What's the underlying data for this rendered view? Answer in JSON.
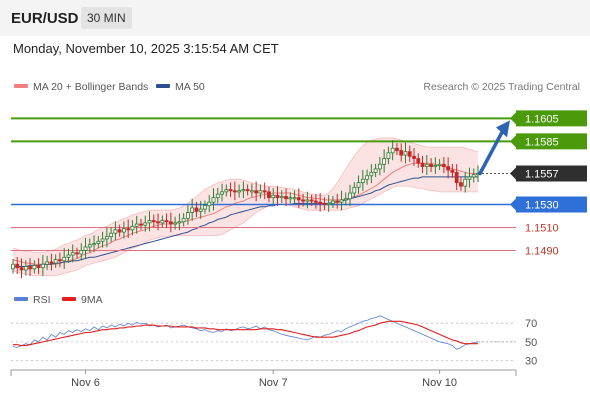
{
  "header": {
    "pair": "EUR/USD",
    "timeframe": "30 MIN",
    "datetime": "Monday, November 10, 2025 3:15:54 AM CET"
  },
  "legend": [
    {
      "label": "MA 20 + Bollinger Bands",
      "color": "#f08080"
    },
    {
      "label": "MA 50",
      "color": "#2b4f8f"
    }
  ],
  "credit": "Research © 2025 Trading Central",
  "rsi_legend": [
    {
      "label": "RSI",
      "color": "#5b7fd6"
    },
    {
      "label": "9MA",
      "color": "#e02020"
    }
  ],
  "colors": {
    "up": "#2e7d32",
    "down": "#c62828",
    "target": "#4a9a0c",
    "pivot": "#2e6fd8",
    "support": "#e07080",
    "arrow": "#2b64b0"
  },
  "chart_data": [
    {
      "type": "candlestick",
      "title": "EUR/USD",
      "ylim": [
        1.1466,
        1.1621
      ],
      "x_ticks": [
        "Nov 6",
        "Nov 7",
        "Nov 10"
      ],
      "levels": [
        {
          "label": "1.1605",
          "value": 1.1605,
          "kind": "target"
        },
        {
          "label": "1.1585",
          "value": 1.1585,
          "kind": "target"
        },
        {
          "label": "1.1557",
          "value": 1.1557,
          "kind": "current"
        },
        {
          "label": "1.1530",
          "value": 1.153,
          "kind": "pivot"
        },
        {
          "label": "1.1510",
          "value": 1.151,
          "kind": "support"
        },
        {
          "label": "1.1490",
          "value": 1.149,
          "kind": "support"
        }
      ],
      "close": [
        1.1478,
        1.1475,
        1.1473,
        1.1476,
        1.1474,
        1.1477,
        1.1475,
        1.1478,
        1.148,
        1.1479,
        1.1482,
        1.1481,
        1.1484,
        1.1486,
        1.1488,
        1.1487,
        1.149,
        1.1493,
        1.1495,
        1.1496,
        1.1498,
        1.15,
        1.1502,
        1.1505,
        1.1508,
        1.1506,
        1.1509,
        1.1508,
        1.1511,
        1.1513,
        1.1512,
        1.1514,
        1.1516,
        1.1515,
        1.1514,
        1.1516,
        1.1515,
        1.1513,
        1.1514,
        1.1515,
        1.1518,
        1.1523,
        1.1527,
        1.1524,
        1.1526,
        1.1529,
        1.1532,
        1.1536,
        1.1539,
        1.1541,
        1.1543,
        1.1542,
        1.1541,
        1.1542,
        1.1543,
        1.1542,
        1.1542,
        1.154,
        1.1542,
        1.1541,
        1.1536,
        1.1538,
        1.1536,
        1.1537,
        1.1535,
        1.1536,
        1.1536,
        1.1534,
        1.1533,
        1.1534,
        1.1533,
        1.1532,
        1.1531,
        1.153,
        1.1531,
        1.1533,
        1.1532,
        1.1534,
        1.1535,
        1.154,
        1.1545,
        1.1549,
        1.1552,
        1.1555,
        1.1558,
        1.1561,
        1.1565,
        1.157,
        1.1575,
        1.1579,
        1.1577,
        1.1573,
        1.1576,
        1.1572,
        1.157,
        1.1566,
        1.1563,
        1.1565,
        1.1563,
        1.1564,
        1.1565,
        1.1563,
        1.156,
        1.1558,
        1.1549,
        1.1546,
        1.1552,
        1.1554,
        1.1556,
        1.1557
      ],
      "ma20": [
        1.1482,
        1.1481,
        1.148,
        1.1479,
        1.1479,
        1.1478,
        1.1478,
        1.1478,
        1.1478,
        1.1478,
        1.1478,
        1.1479,
        1.148,
        1.1481,
        1.1482,
        1.1483,
        1.1485,
        1.1487,
        1.1488,
        1.149,
        1.1492,
        1.1494,
        1.1495,
        1.1497,
        1.1499,
        1.15,
        1.1502,
        1.1503,
        1.1505,
        1.1506,
        1.1507,
        1.1508,
        1.151,
        1.1511,
        1.1512,
        1.1513,
        1.1513,
        1.1513,
        1.1514,
        1.1514,
        1.1515,
        1.1516,
        1.1517,
        1.1518,
        1.1519,
        1.152,
        1.1521,
        1.1522,
        1.1524,
        1.1526,
        1.1528,
        1.1529,
        1.1531,
        1.1532,
        1.1533,
        1.1535,
        1.1536,
        1.1537,
        1.1538,
        1.1539,
        1.1539,
        1.154,
        1.154,
        1.154,
        1.154,
        1.154,
        1.1539,
        1.1538,
        1.1537,
        1.1536,
        1.1536,
        1.1535,
        1.1535,
        1.1534,
        1.1534,
        1.1534,
        1.1534,
        1.1534,
        1.1535,
        1.1536,
        1.1537,
        1.1538,
        1.154,
        1.1542,
        1.1544,
        1.1546,
        1.1549,
        1.1552,
        1.1555,
        1.1558,
        1.156,
        1.1562,
        1.1564,
        1.1565,
        1.1566,
        1.1566,
        1.1566,
        1.1566,
        1.1566,
        1.1565,
        1.1564,
        1.1563,
        1.1562,
        1.1561,
        1.156,
        1.1559,
        1.1558,
        1.1557,
        1.1557,
        1.1557
      ],
      "bb_upper": [
        1.1492,
        1.1491,
        1.149,
        1.1489,
        1.1489,
        1.1488,
        1.1488,
        1.1488,
        1.1489,
        1.149,
        1.1491,
        1.1493,
        1.1495,
        1.1496,
        1.1498,
        1.1499,
        1.1501,
        1.1503,
        1.1504,
        1.1506,
        1.1508,
        1.151,
        1.1511,
        1.1513,
        1.1515,
        1.1516,
        1.1518,
        1.1519,
        1.1521,
        1.1522,
        1.1523,
        1.1524,
        1.1525,
        1.1525,
        1.1525,
        1.1525,
        1.1525,
        1.1525,
        1.1526,
        1.1527,
        1.1529,
        1.1531,
        1.1534,
        1.1537,
        1.154,
        1.1543,
        1.1545,
        1.1547,
        1.1549,
        1.155,
        1.1551,
        1.1552,
        1.1552,
        1.1552,
        1.1551,
        1.155,
        1.1549,
        1.1548,
        1.1547,
        1.1546,
        1.1546,
        1.1546,
        1.1545,
        1.1545,
        1.1544,
        1.1544,
        1.1543,
        1.1542,
        1.1541,
        1.154,
        1.1539,
        1.1538,
        1.1538,
        1.1538,
        1.154,
        1.1544,
        1.1549,
        1.1555,
        1.1561,
        1.1567,
        1.1572,
        1.1577,
        1.1581,
        1.1584,
        1.1586,
        1.1587,
        1.1588,
        1.1588,
        1.1588,
        1.1588,
        1.1587,
        1.1586,
        1.1585,
        1.1584,
        1.1583,
        1.1582,
        1.1581,
        1.158,
        1.158,
        1.158,
        1.158,
        1.158,
        1.158,
        1.158,
        1.158,
        1.158,
        1.1579,
        1.1578,
        1.1577,
        1.1576
      ],
      "bb_lower": [
        1.1472,
        1.1471,
        1.147,
        1.1469,
        1.1469,
        1.1468,
        1.1468,
        1.1468,
        1.1468,
        1.1468,
        1.1468,
        1.1469,
        1.147,
        1.1471,
        1.1472,
        1.1473,
        1.1475,
        1.1477,
        1.1478,
        1.1479,
        1.148,
        1.1481,
        1.1482,
        1.1483,
        1.1484,
        1.1486,
        1.1488,
        1.149,
        1.1492,
        1.1493,
        1.1495,
        1.1497,
        1.1499,
        1.15,
        1.1501,
        1.1502,
        1.1502,
        1.1503,
        1.1503,
        1.1503,
        1.1503,
        1.1503,
        1.1503,
        1.1503,
        1.1503,
        1.1503,
        1.1503,
        1.1503,
        1.1503,
        1.1504,
        1.1506,
        1.1508,
        1.151,
        1.1512,
        1.1514,
        1.1517,
        1.152,
        1.1523,
        1.1525,
        1.1527,
        1.1529,
        1.153,
        1.153,
        1.153,
        1.153,
        1.1529,
        1.1528,
        1.1527,
        1.1526,
        1.1525,
        1.1525,
        1.1525,
        1.1525,
        1.1525,
        1.1525,
        1.1525,
        1.1525,
        1.1525,
        1.1526,
        1.1527,
        1.1528,
        1.1529,
        1.1531,
        1.1533,
        1.1535,
        1.1537,
        1.1539,
        1.1541,
        1.1543,
        1.1545,
        1.1546,
        1.1546,
        1.1546,
        1.1546,
        1.1545,
        1.1544,
        1.1544,
        1.1543,
        1.1542,
        1.1542,
        1.1541,
        1.1541,
        1.1541,
        1.1541,
        1.1541,
        1.1541,
        1.1541,
        1.1541,
        1.1541,
        1.1541
      ],
      "ma50": [
        1.1476,
        1.1476,
        1.1476,
        1.1476,
        1.1477,
        1.1477,
        1.1477,
        1.1478,
        1.1478,
        1.1478,
        1.1479,
        1.1479,
        1.148,
        1.148,
        1.1481,
        1.1481,
        1.1482,
        1.1483,
        1.1484,
        1.1484,
        1.1485,
        1.1486,
        1.1487,
        1.1488,
        1.1489,
        1.149,
        1.1491,
        1.1492,
        1.1493,
        1.1494,
        1.1495,
        1.1496,
        1.1497,
        1.1498,
        1.1499,
        1.15,
        1.1501,
        1.1502,
        1.1503,
        1.1504,
        1.1505,
        1.1506,
        1.1508,
        1.1509,
        1.1511,
        1.1512,
        1.1514,
        1.1515,
        1.1517,
        1.1518,
        1.1519,
        1.1521,
        1.1522,
        1.1523,
        1.1524,
        1.1525,
        1.1526,
        1.1527,
        1.1528,
        1.1528,
        1.1529,
        1.1529,
        1.153,
        1.153,
        1.153,
        1.153,
        1.1531,
        1.1531,
        1.1531,
        1.1531,
        1.1531,
        1.1531,
        1.1531,
        1.1531,
        1.1531,
        1.1532,
        1.1532,
        1.1533,
        1.1534,
        1.1535,
        1.1536,
        1.1537,
        1.1538,
        1.1539,
        1.154,
        1.1542,
        1.1543,
        1.1545,
        1.1547,
        1.1548,
        1.1549,
        1.155,
        1.1551,
        1.1552,
        1.1553,
        1.1553,
        1.1554,
        1.1554,
        1.1554,
        1.1554,
        1.1554,
        1.1554,
        1.1554,
        1.1554,
        1.1554,
        1.1554,
        1.1554,
        1.1554,
        1.1554,
        1.1554
      ]
    },
    {
      "type": "line",
      "title": "RSI",
      "ylim": [
        22,
        82
      ],
      "y_ticks": [
        70,
        50,
        30
      ],
      "series": [
        {
          "name": "RSI",
          "values": [
            45,
            44,
            46,
            48,
            47,
            52,
            50,
            55,
            52,
            58,
            55,
            60,
            58,
            62,
            60,
            63,
            61,
            64,
            62,
            66,
            63,
            67,
            65,
            68,
            66,
            69,
            67,
            70,
            68,
            71,
            69,
            70,
            67,
            68,
            66,
            67,
            68,
            65,
            66,
            67,
            68,
            66,
            65,
            64,
            62,
            63,
            61,
            60,
            62,
            61,
            64,
            62,
            63,
            65,
            66,
            64,
            65,
            67,
            64,
            66,
            63,
            62,
            60,
            58,
            57,
            56,
            55,
            54,
            53,
            52,
            54,
            56,
            55,
            57,
            58,
            60,
            62,
            61,
            64,
            66,
            68,
            70,
            72,
            73,
            75,
            76,
            78,
            76,
            74,
            72,
            70,
            68,
            66,
            64,
            62,
            60,
            58,
            56,
            54,
            52,
            50,
            49,
            48,
            46,
            42,
            44,
            47,
            48,
            49,
            50
          ]
        },
        {
          "name": "9MA",
          "values": [
            47,
            47,
            46,
            46,
            47,
            48,
            49,
            50,
            51,
            52,
            53,
            54,
            55,
            56,
            57,
            58,
            59,
            60,
            60,
            61,
            62,
            63,
            63,
            64,
            64,
            65,
            65,
            66,
            66,
            67,
            67,
            68,
            68,
            68,
            67,
            67,
            67,
            67,
            66,
            66,
            66,
            66,
            66,
            65,
            65,
            65,
            64,
            64,
            63,
            63,
            63,
            63,
            63,
            63,
            63,
            63,
            63,
            63,
            64,
            64,
            64,
            64,
            63,
            63,
            62,
            61,
            60,
            59,
            58,
            57,
            56,
            55,
            55,
            55,
            55,
            55,
            56,
            57,
            58,
            59,
            61,
            62,
            64,
            66,
            67,
            68,
            70,
            71,
            72,
            72,
            72,
            72,
            71,
            70,
            69,
            68,
            66,
            64,
            62,
            60,
            58,
            56,
            54,
            52,
            51,
            49,
            48,
            48,
            48,
            48
          ]
        }
      ]
    }
  ]
}
